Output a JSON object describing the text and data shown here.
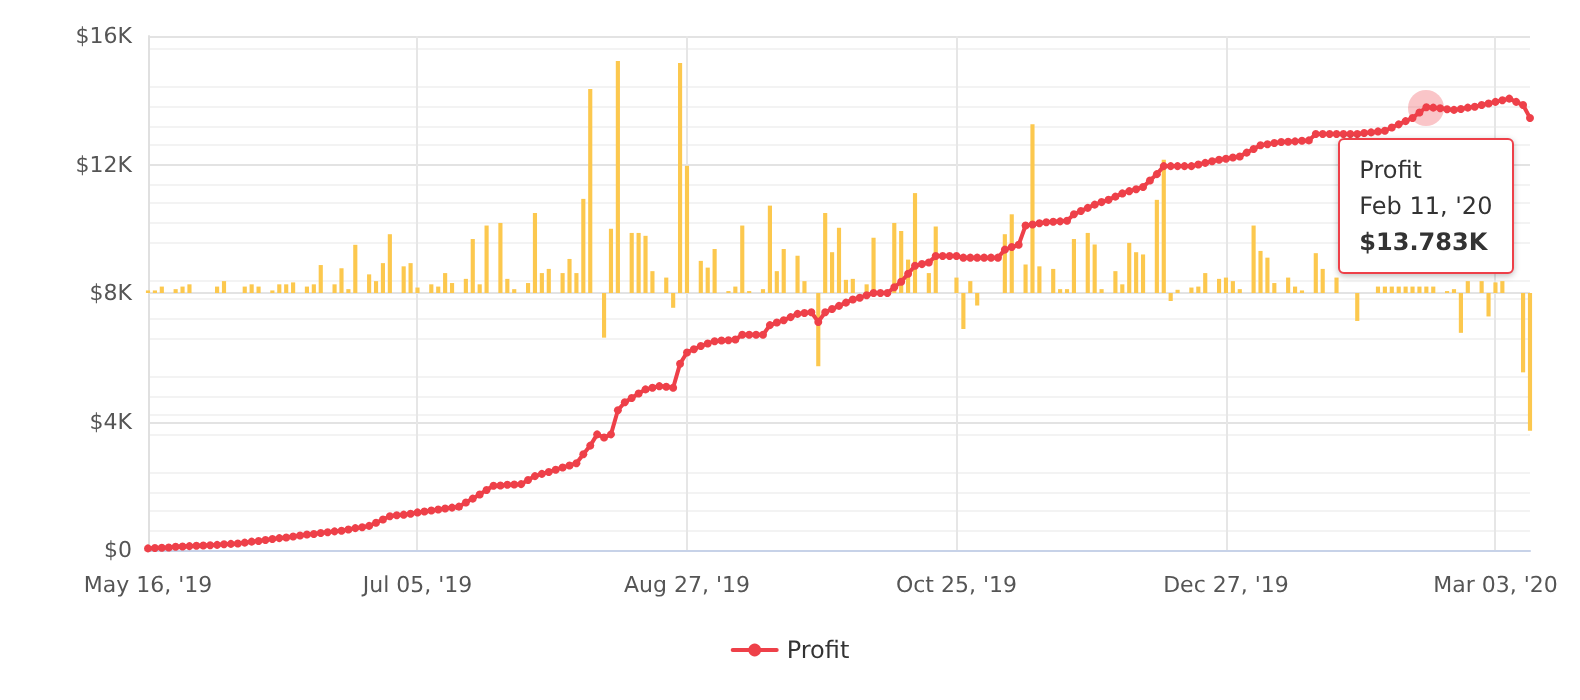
{
  "chart_data": {
    "type": "line",
    "categories": [
      "May 16, '19",
      null,
      null,
      null,
      null,
      null,
      null,
      null,
      null,
      null,
      null,
      null,
      null,
      null,
      null,
      null,
      null,
      null,
      null,
      null,
      null,
      null,
      null,
      null,
      null,
      null,
      null,
      null,
      null,
      null,
      null,
      null,
      null,
      null,
      null,
      null,
      null,
      null,
      null,
      "Jul 05, '19",
      null,
      null,
      null,
      null,
      null,
      null,
      null,
      null,
      null,
      null,
      null,
      null,
      null,
      null,
      null,
      null,
      null,
      null,
      null,
      null,
      null,
      null,
      null,
      null,
      null,
      null,
      null,
      null,
      null,
      null,
      null,
      null,
      null,
      null,
      null,
      null,
      null,
      null,
      "Aug 27, '19",
      null,
      null,
      null,
      null,
      null,
      null,
      null,
      null,
      null,
      null,
      null,
      null,
      null,
      null,
      null,
      null,
      null,
      null,
      null,
      null,
      null,
      null,
      null,
      null,
      null,
      null,
      null,
      null,
      null,
      null,
      null,
      null,
      null,
      null,
      null,
      null,
      null,
      null,
      "Oct 25, '19",
      null,
      null,
      null,
      null,
      null,
      null,
      null,
      null,
      null,
      null,
      null,
      null,
      null,
      null,
      null,
      null,
      null,
      null,
      null,
      null,
      null,
      null,
      null,
      null,
      null,
      null,
      null,
      null,
      null,
      null,
      null,
      null,
      null,
      null,
      null,
      null,
      null,
      null,
      "Dec 27, '19",
      null,
      null,
      null,
      null,
      null,
      null,
      null,
      null,
      null,
      null,
      null,
      null,
      null,
      null,
      null,
      null,
      null,
      null,
      null,
      null,
      null,
      null,
      null,
      null,
      null,
      null,
      null,
      null,
      null,
      null,
      null,
      null,
      null,
      null,
      null,
      null,
      null,
      null,
      "Mar 03, '20",
      null,
      null,
      null,
      null,
      null
    ],
    "series": [
      {
        "type": "bar",
        "color": "#fcc84e",
        "base": [
          8000,
          8000,
          8000,
          null,
          8000,
          8000,
          8000,
          null,
          null,
          null,
          8000,
          8000,
          null,
          null,
          8000,
          8000,
          8000,
          null,
          8000,
          8000,
          8000,
          8000,
          null,
          8000,
          8000,
          8000,
          null,
          8000,
          8000,
          8000,
          8000,
          null,
          8000,
          8000,
          8000,
          8000,
          null,
          8000,
          8000,
          8000,
          null,
          8000,
          8000,
          8000,
          8000,
          null,
          8000,
          8000,
          8000,
          8000,
          null,
          8000,
          8000,
          8000,
          null,
          8000,
          8000,
          8000,
          8000,
          null,
          8000,
          8000,
          8000,
          8000,
          8000,
          null,
          8000,
          8000,
          8000,
          null,
          8000,
          8000,
          8000,
          8000,
          null,
          8000,
          8000,
          8000,
          8000,
          null,
          8000,
          8000,
          8000,
          null,
          8000,
          8000,
          8000,
          8000,
          null,
          8000,
          8000,
          8000,
          8000,
          null,
          8000,
          8000,
          null,
          8000,
          8000,
          8000,
          8000,
          8000,
          8000,
          null,
          8000,
          8000,
          8000,
          null,
          8000,
          8000,
          8000,
          8000,
          null,
          8000,
          8000,
          null,
          null,
          8000,
          8000,
          8000,
          8000,
          null,
          null,
          null,
          8000,
          8000,
          null,
          8000,
          8000,
          8000,
          null,
          8000,
          8000,
          8000,
          8000,
          null,
          8000,
          8000,
          8000,
          null,
          8000,
          8000,
          8000,
          8000,
          8000,
          null,
          8000,
          8000,
          8000,
          8000,
          null,
          8000,
          8000,
          8000,
          null,
          8000,
          8000,
          8000,
          8000,
          null,
          8000,
          8000,
          8000,
          8000,
          null,
          8000,
          8000,
          8000,
          null,
          8000,
          8000,
          null,
          8000,
          null,
          null,
          8000,
          null,
          null,
          8000,
          8000,
          8000,
          8000,
          8000,
          8000,
          8000,
          8000,
          8000,
          null,
          8000,
          8000,
          8000,
          8000,
          null,
          8000,
          8000,
          8000,
          8000,
          null,
          null,
          8000,
          8000
        ],
        "values": [
          80,
          80,
          200,
          null,
          120,
          200,
          270,
          null,
          null,
          null,
          200,
          370,
          null,
          null,
          200,
          270,
          200,
          null,
          80,
          270,
          270,
          330,
          null,
          200,
          270,
          870,
          null,
          270,
          770,
          120,
          1500,
          null,
          580,
          370,
          930,
          1830,
          null,
          830,
          930,
          170,
          null,
          270,
          200,
          620,
          310,
          null,
          440,
          1680,
          270,
          2100,
          null,
          2180,
          440,
          120,
          null,
          310,
          2490,
          620,
          750,
          null,
          620,
          1060,
          620,
          2930,
          6350,
          null,
          -1390,
          2000,
          7220,
          null,
          1870,
          1870,
          1780,
          680,
          null,
          480,
          -460,
          7160,
          3960,
          null,
          1000,
          790,
          1370,
          null,
          60,
          200,
          2100,
          60,
          null,
          120,
          2720,
          680,
          1370,
          null,
          1160,
          370,
          null,
          -2280,
          2490,
          1270,
          2030,
          410,
          440,
          null,
          270,
          1720,
          60,
          null,
          2180,
          1930,
          1040,
          3110,
          null,
          620,
          2070,
          null,
          null,
          480,
          -1120,
          370,
          -390,
          null,
          null,
          null,
          1830,
          2450,
          null,
          890,
          5250,
          830,
          null,
          750,
          120,
          120,
          1680,
          null,
          1870,
          1510,
          120,
          null,
          680,
          270,
          1560,
          1270,
          1200,
          null,
          2900,
          4150,
          -250,
          100,
          null,
          170,
          200,
          620,
          null,
          440,
          480,
          370,
          120,
          null,
          2100,
          1310,
          1100,
          310,
          null,
          480,
          200,
          80,
          null,
          1240,
          750,
          null,
          480,
          null,
          null,
          -870,
          null,
          null,
          200,
          200,
          200,
          200,
          200,
          200,
          200,
          200,
          200,
          null,
          60,
          120,
          -1240,
          370,
          null,
          370,
          -730,
          330,
          370,
          null,
          null,
          -2470,
          -4290
        ]
      },
      {
        "name": "Profit",
        "color": "#ee4049",
        "marker": "circle",
        "values": [
          50,
          60,
          70,
          80,
          100,
          110,
          120,
          130,
          140,
          150,
          160,
          180,
          190,
          200,
          230,
          260,
          280,
          310,
          340,
          370,
          390,
          420,
          450,
          480,
          500,
          530,
          550,
          580,
          600,
          640,
          680,
          710,
          750,
          850,
          950,
          1050,
          1080,
          1100,
          1130,
          1170,
          1200,
          1230,
          1260,
          1290,
          1320,
          1350,
          1480,
          1600,
          1730,
          1870,
          2000,
          2010,
          2030,
          2040,
          2050,
          2180,
          2300,
          2370,
          2430,
          2500,
          2570,
          2630,
          2700,
          2980,
          3250,
          3600,
          3500,
          3600,
          4350,
          4600,
          4730,
          4870,
          5000,
          5050,
          5100,
          5080,
          5050,
          5800,
          6150,
          6250,
          6350,
          6430,
          6500,
          6520,
          6530,
          6550,
          6700,
          6700,
          6700,
          6700,
          7000,
          7080,
          7150,
          7250,
          7350,
          7380,
          7400,
          7100,
          7400,
          7500,
          7600,
          7700,
          7800,
          7850,
          7930,
          8000,
          8000,
          8000,
          8180,
          8350,
          8600,
          8850,
          8900,
          8950,
          9150,
          9150,
          9150,
          9150,
          9100,
          9100,
          9100,
          9100,
          9100,
          9100,
          9350,
          9430,
          9500,
          10100,
          10130,
          10170,
          10200,
          10220,
          10230,
          10250,
          10450,
          10550,
          10650,
          10750,
          10830,
          10900,
          11000,
          11100,
          11170,
          11230,
          11300,
          11500,
          11700,
          11950,
          11950,
          11950,
          11950,
          11950,
          12000,
          12050,
          12100,
          12150,
          12180,
          12220,
          12250,
          12370,
          12480,
          12600,
          12630,
          12670,
          12700,
          12710,
          12720,
          12740,
          12750,
          12950,
          12950,
          12950,
          12950,
          12950,
          12950,
          12950,
          12980,
          13000,
          13030,
          13050,
          13150,
          13250,
          13350,
          13450,
          13620,
          13783,
          13770,
          13750,
          13720,
          13700,
          13730,
          13770,
          13800,
          13850,
          13900,
          13950,
          14000,
          14050,
          13950,
          13850,
          13450
        ]
      }
    ],
    "ylim": [
      0,
      16000
    ],
    "yticks": [
      {
        "value": 0,
        "label": "$0"
      },
      {
        "value": 4000,
        "label": "$4K"
      },
      {
        "value": 8000,
        "label": "$8K"
      },
      {
        "value": 12000,
        "label": "$12K"
      },
      {
        "value": 16000,
        "label": "$16K"
      }
    ],
    "grid": true,
    "legend": "bottom",
    "annotations": [
      {
        "text": "Profit\nFeb 11, '20\n$13.783K",
        "y": 13783
      }
    ]
  }
}
